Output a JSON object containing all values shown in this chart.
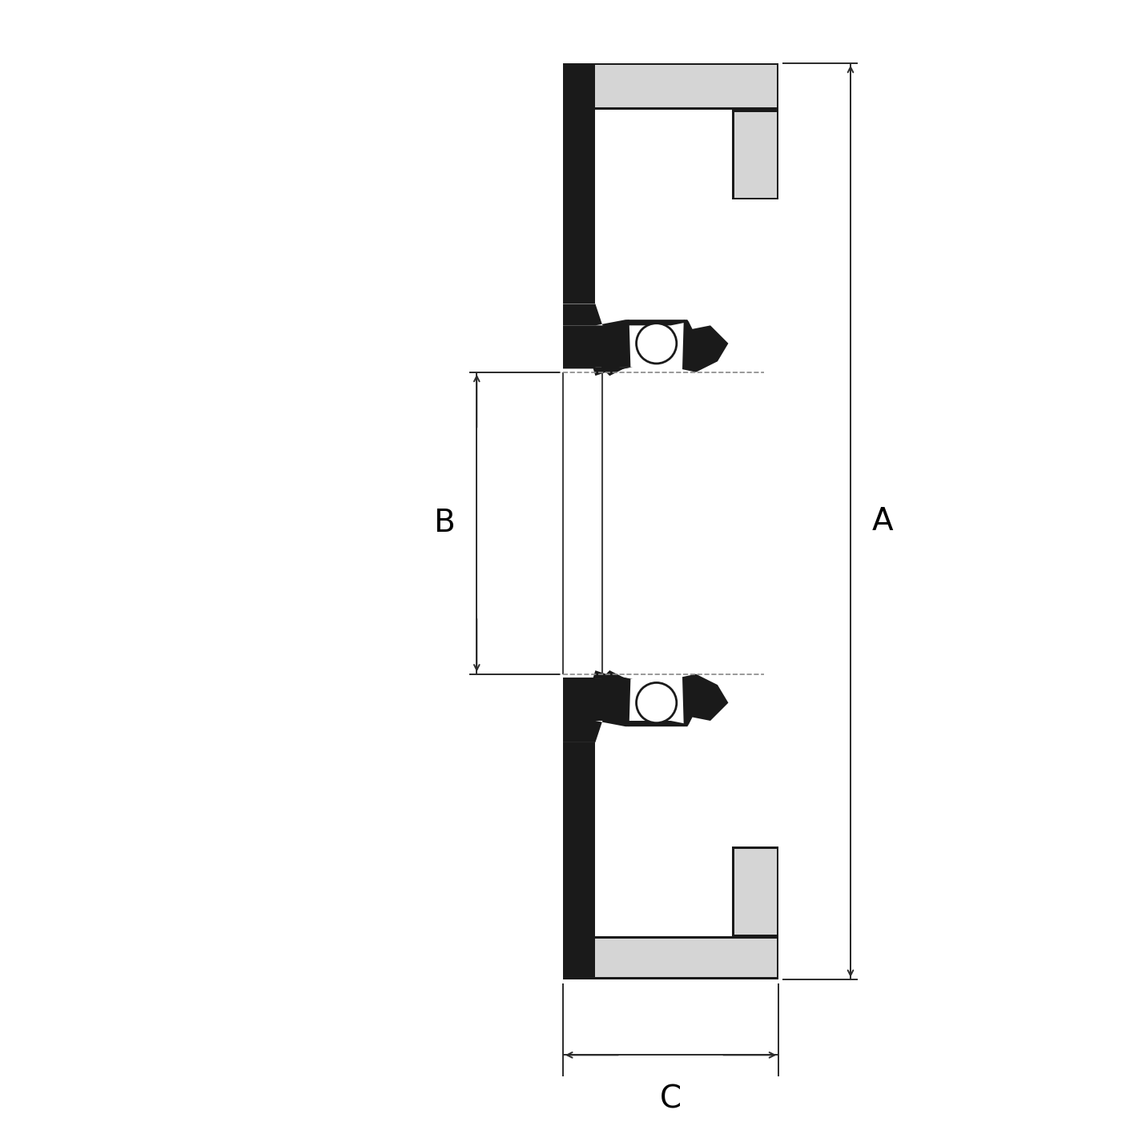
{
  "background_color": "#ffffff",
  "fill_black": "#1a1a1a",
  "fill_light_gray": "#d5d5d5",
  "fill_white": "#ffffff",
  "dim_color": "#2a2a2a",
  "fig_size": [
    14.06,
    14.06
  ],
  "dpi": 100,
  "label_A": "A",
  "label_B": "B",
  "label_C": "C",
  "label_fontsize": 28,
  "lw_main": 1.5,
  "lw_dim": 1.4
}
